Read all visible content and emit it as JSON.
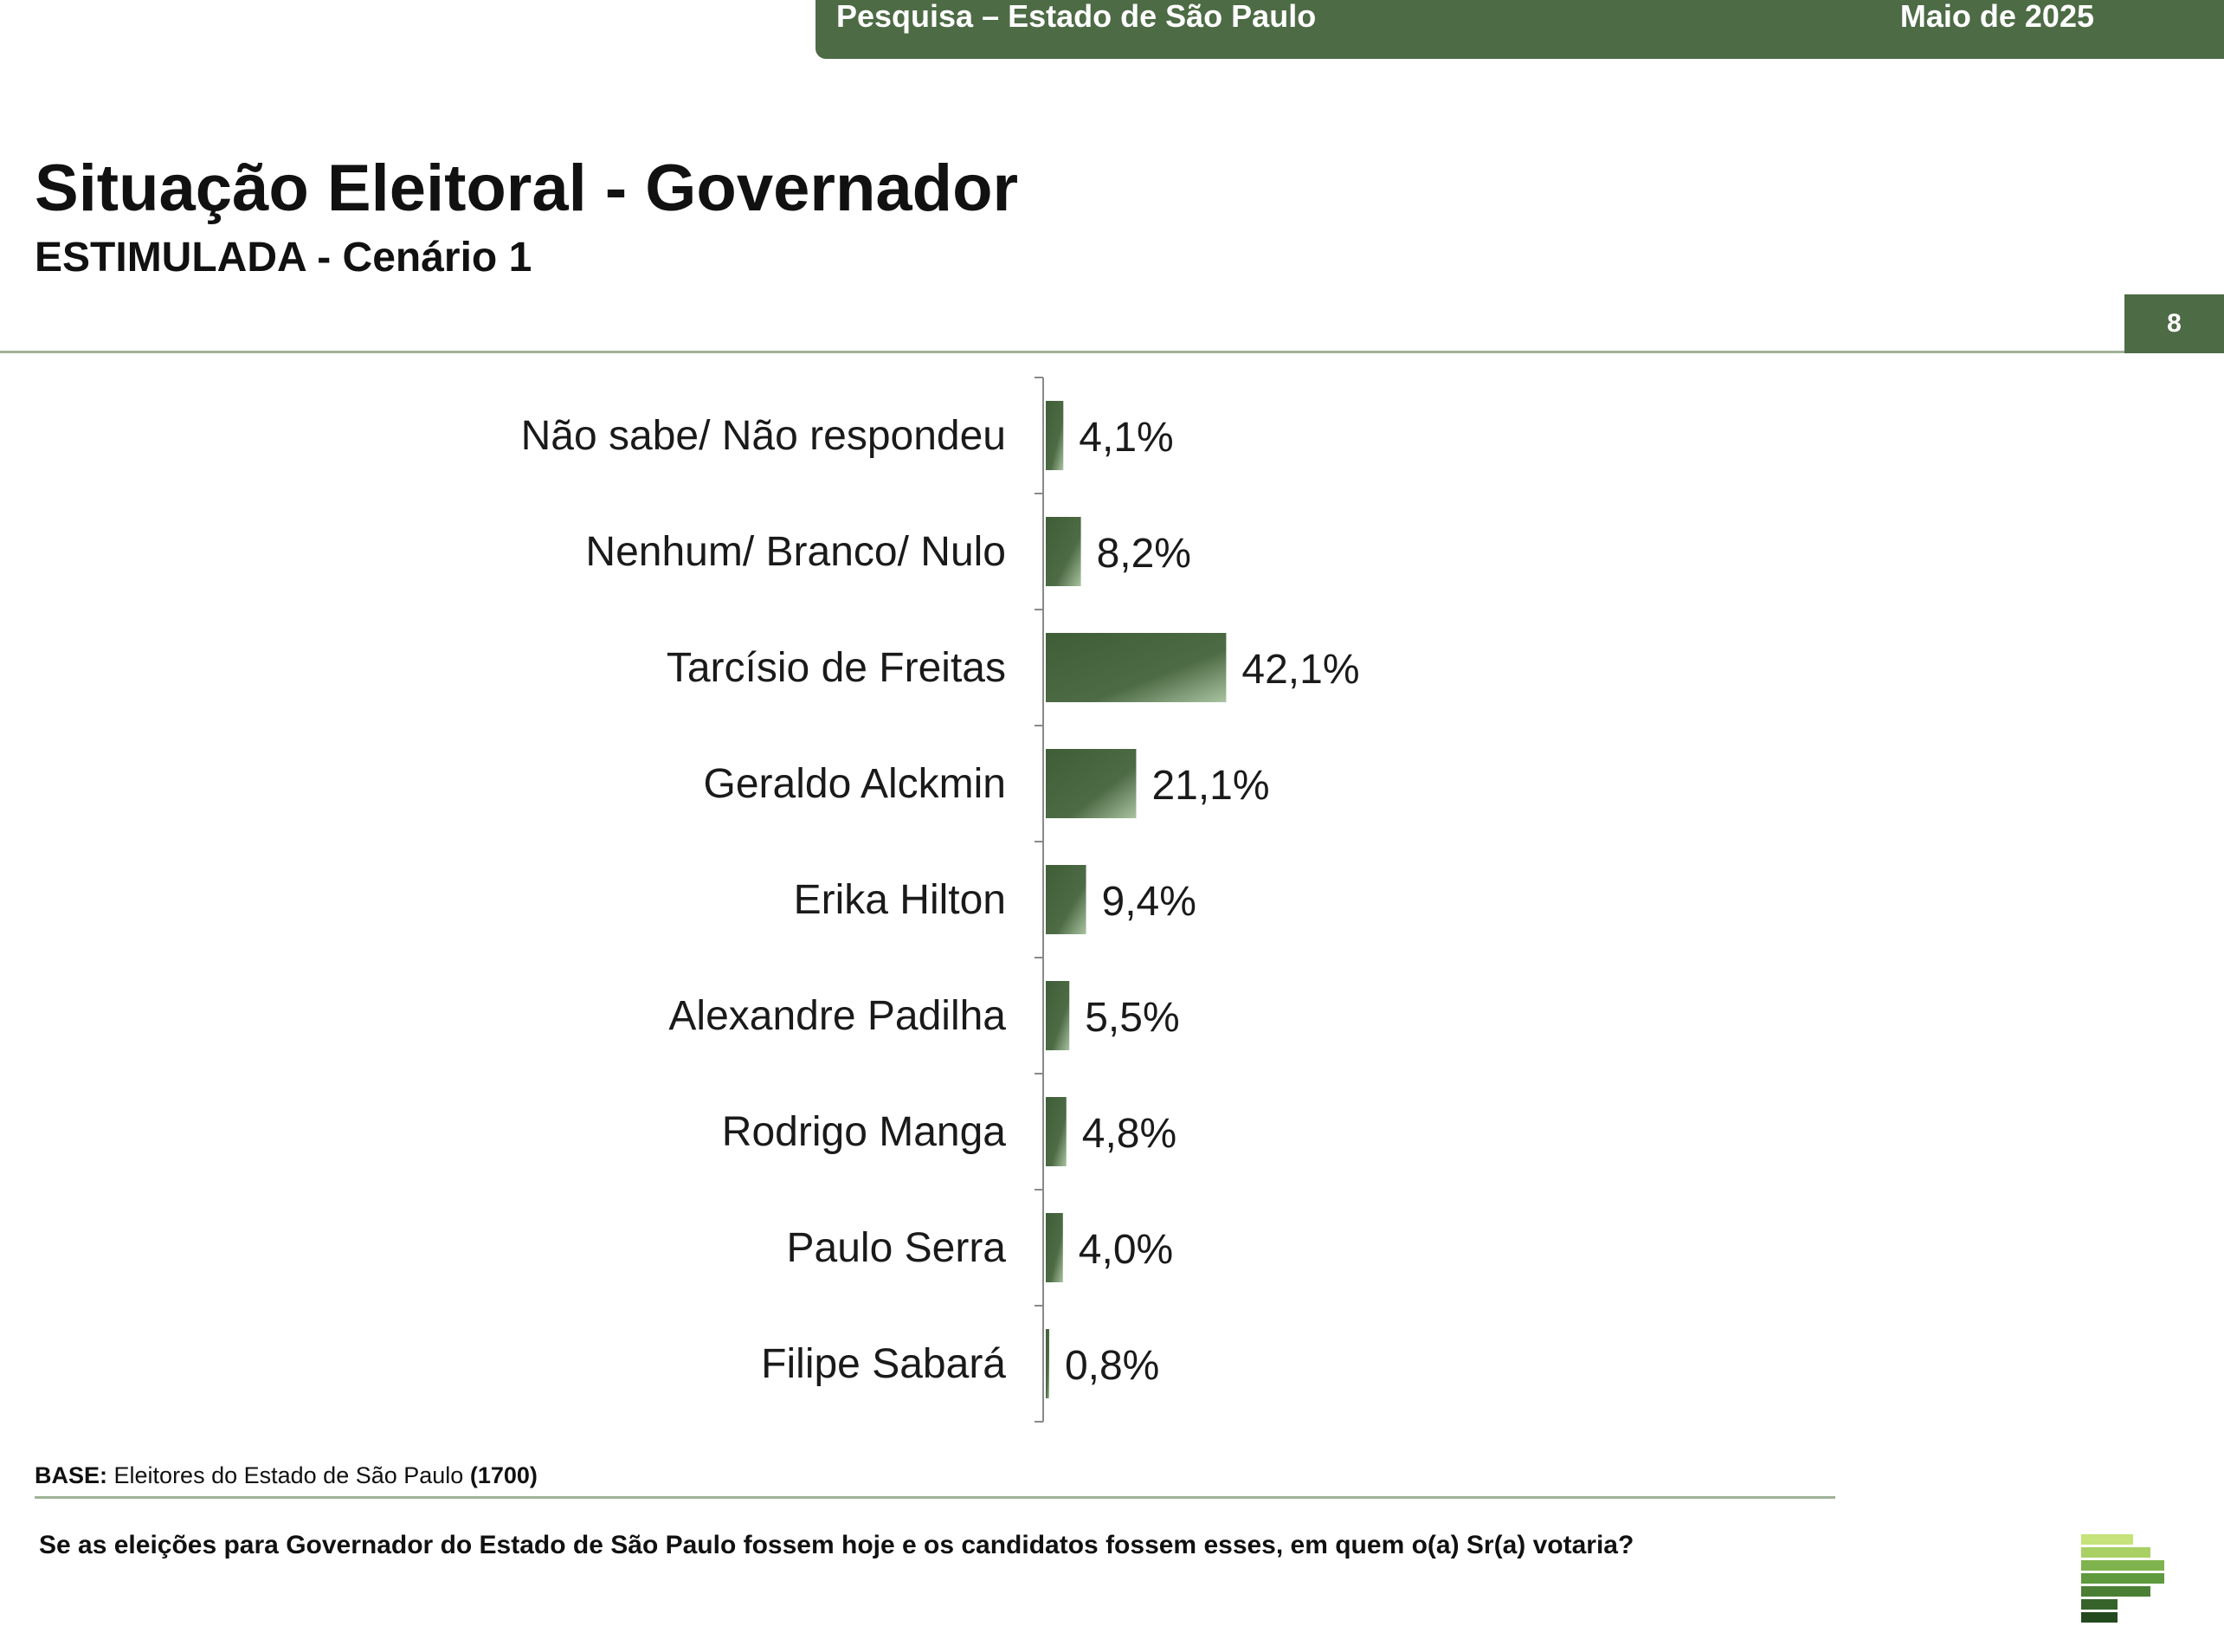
{
  "header": {
    "survey_label": "Pesquisa – Estado de São Paulo",
    "date_label": "Maio de 2025",
    "bar_color": "#4d6b45"
  },
  "title": "Situação Eleitoral - Governador",
  "subtitle": "ESTIMULADA - Cenário 1",
  "page_number": "8",
  "chart_data": {
    "type": "bar",
    "orientation": "horizontal",
    "categories": [
      "Não sabe/ Não respondeu",
      "Nenhum/ Branco/ Nulo",
      "Tarcísio de Freitas",
      "Geraldo Alckmin",
      "Erika Hilton",
      "Alexandre Padilha",
      "Rodrigo Manga",
      "Paulo Serra",
      "Filipe Sabará"
    ],
    "values": [
      4.1,
      8.2,
      42.1,
      21.1,
      9.4,
      5.5,
      4.8,
      4.0,
      0.8
    ],
    "value_labels": [
      "4,1%",
      "8,2%",
      "42,1%",
      "21,1%",
      "9,4%",
      "5,5%",
      "4,8%",
      "4,0%",
      "0,8%"
    ],
    "unit": "%",
    "bar_color": "#4d6b45",
    "grid": false,
    "legend": "none"
  },
  "footer": {
    "base_label": "BASE:",
    "base_text": "Eleitores do Estado de São Paulo",
    "base_count": "(1700)",
    "question": "Se as eleições para Governador do Estado de São Paulo fossem hoje e os candidatos fossem esses, em quem o(a) Sr(a) votaria?"
  },
  "logo": {
    "icon": "brand-logo-icon"
  }
}
